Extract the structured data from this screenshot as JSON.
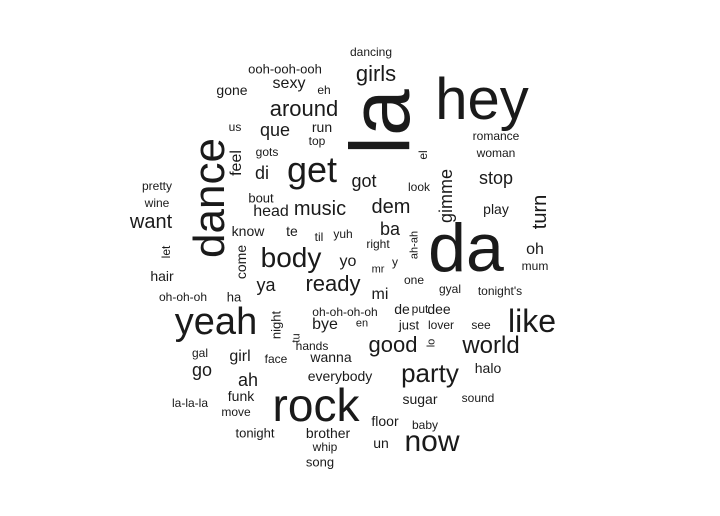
{
  "title": "",
  "text_color": "#1a1a1a",
  "words": [
    {
      "text": "la",
      "vertical": true
    },
    {
      "text": "da",
      "vertical": false
    },
    {
      "text": "hey",
      "vertical": false
    },
    {
      "text": "dance",
      "vertical": true
    },
    {
      "text": "rock",
      "vertical": false
    },
    {
      "text": "yeah",
      "vertical": false
    },
    {
      "text": "like",
      "vertical": false
    },
    {
      "text": "get",
      "vertical": false
    },
    {
      "text": "now",
      "vertical": false
    },
    {
      "text": "body",
      "vertical": false
    },
    {
      "text": "party",
      "vertical": false
    },
    {
      "text": "world",
      "vertical": false
    },
    {
      "text": "good",
      "vertical": false
    },
    {
      "text": "around",
      "vertical": false
    },
    {
      "text": "girls",
      "vertical": false
    },
    {
      "text": "ready",
      "vertical": false
    },
    {
      "text": "music",
      "vertical": false
    },
    {
      "text": "dem",
      "vertical": false
    },
    {
      "text": "want",
      "vertical": false
    },
    {
      "text": "turn",
      "vertical": true
    },
    {
      "text": "gimme",
      "vertical": true
    },
    {
      "text": "stop",
      "vertical": false
    },
    {
      "text": "ba",
      "vertical": false
    },
    {
      "text": "got",
      "vertical": false
    },
    {
      "text": "ya",
      "vertical": false
    },
    {
      "text": "yo",
      "vertical": false
    },
    {
      "text": "go",
      "vertical": false
    },
    {
      "text": "ah",
      "vertical": false
    },
    {
      "text": "di",
      "vertical": false
    },
    {
      "text": "que",
      "vertical": false
    },
    {
      "text": "sexy",
      "vertical": false
    },
    {
      "text": "head",
      "vertical": false
    },
    {
      "text": "girl",
      "vertical": false
    },
    {
      "text": "bye",
      "vertical": false
    },
    {
      "text": "oh",
      "vertical": false
    },
    {
      "text": "mi",
      "vertical": false
    },
    {
      "text": "de",
      "vertical": false
    },
    {
      "text": "dee",
      "vertical": false
    },
    {
      "text": "wanna",
      "vertical": false
    },
    {
      "text": "feel",
      "vertical": true
    },
    {
      "text": "know",
      "vertical": false
    },
    {
      "text": "te",
      "vertical": false
    },
    {
      "text": "run",
      "vertical": false
    },
    {
      "text": "funk",
      "vertical": false
    },
    {
      "text": "everybody",
      "vertical": false
    },
    {
      "text": "floor",
      "vertical": false
    },
    {
      "text": "sugar",
      "vertical": false
    },
    {
      "text": "un",
      "vertical": false
    },
    {
      "text": "halo",
      "vertical": false
    },
    {
      "text": "play",
      "vertical": false
    },
    {
      "text": "gone",
      "vertical": false
    },
    {
      "text": "ooh-ooh-ooh",
      "vertical": false
    },
    {
      "text": "eh",
      "vertical": false
    },
    {
      "text": "dancing",
      "vertical": false
    },
    {
      "text": "us",
      "vertical": false
    },
    {
      "text": "top",
      "vertical": false
    },
    {
      "text": "gots",
      "vertical": false
    },
    {
      "text": "romance",
      "vertical": false
    },
    {
      "text": "woman",
      "vertical": false
    },
    {
      "text": "el",
      "vertical": true
    },
    {
      "text": "pretty",
      "vertical": false
    },
    {
      "text": "wine",
      "vertical": false
    },
    {
      "text": "bout",
      "vertical": false
    },
    {
      "text": "look",
      "vertical": false
    },
    {
      "text": "come",
      "vertical": true
    },
    {
      "text": "let",
      "vertical": true
    },
    {
      "text": "hair",
      "vertical": false
    },
    {
      "text": "oh-oh-oh",
      "vertical": false
    },
    {
      "text": "ha",
      "vertical": false
    },
    {
      "text": "til",
      "vertical": false
    },
    {
      "text": "yuh",
      "vertical": false
    },
    {
      "text": "right",
      "vertical": false
    },
    {
      "text": "ah-ah",
      "vertical": true
    },
    {
      "text": "mum",
      "vertical": false
    },
    {
      "text": "mr",
      "vertical": false
    },
    {
      "text": "y",
      "vertical": false
    },
    {
      "text": "one",
      "vertical": false
    },
    {
      "text": "gyal",
      "vertical": false
    },
    {
      "text": "tonight's",
      "vertical": false
    },
    {
      "text": "night",
      "vertical": true
    },
    {
      "text": "tu",
      "vertical": true
    },
    {
      "text": "oh-oh-oh-oh",
      "vertical": false
    },
    {
      "text": "put",
      "vertical": false
    },
    {
      "text": "en",
      "vertical": false
    },
    {
      "text": "just",
      "vertical": false
    },
    {
      "text": "lover",
      "vertical": false
    },
    {
      "text": "see",
      "vertical": false
    },
    {
      "text": "lo",
      "vertical": true
    },
    {
      "text": "hands",
      "vertical": false
    },
    {
      "text": "gal",
      "vertical": false
    },
    {
      "text": "face",
      "vertical": false
    },
    {
      "text": "la-la-la",
      "vertical": false
    },
    {
      "text": "move",
      "vertical": false
    },
    {
      "text": "sound",
      "vertical": false
    },
    {
      "text": "baby",
      "vertical": false
    },
    {
      "text": "tonight",
      "vertical": false
    },
    {
      "text": "brother",
      "vertical": false
    },
    {
      "text": "whip",
      "vertical": false
    },
    {
      "text": "song",
      "vertical": false
    }
  ]
}
